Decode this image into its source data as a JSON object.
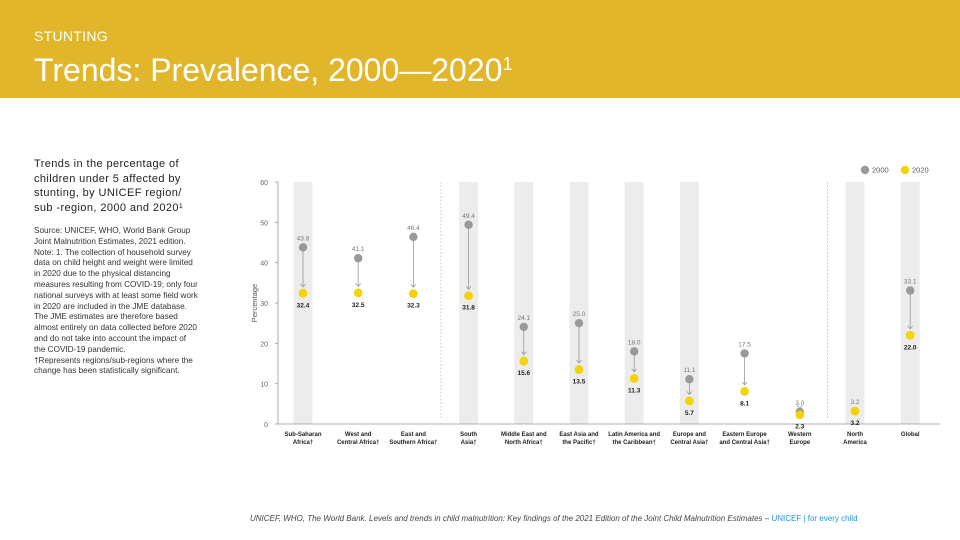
{
  "header": {
    "kicker": "STUNTING",
    "title": "Trends: Prevalence, 2000—2020",
    "title_sup": "1"
  },
  "intro": "Trends in the percentage of children under 5 affected by stunting, by UNICEF region/ sub -region, 2000 and 2020¹",
  "source": {
    "text": "Source: UNICEF, WHO, World Bank Group Joint Malnutrition Estimates, 2021 edition. Note: 1. The collection of household survey data on child height and weight were limited in 2020 due to the physical distancing measures resulting from COVID-19; only four national surveys with at least some field work in 2020 are included in the JME database. The JME estimates are therefore based almost entirely on data collected before 2020 and do not take into account the impact of the COVID-19 pandemic.",
    "note": "†Represents regions/sub-regions where the change has been statistically significant."
  },
  "footer": {
    "citation": "UNICEF, WHO, The World Bank. Levels and trends in child malnutrition: Key findings of the 2021 Edition of the Joint Child Malnutrition Estimates – ",
    "brand": "UNICEF | for every child"
  },
  "colors": {
    "header": "#e2b62b",
    "year2000": "#999999",
    "year2020": "#f5d20a",
    "band": "#ececec",
    "axis": "#999999"
  },
  "chart_data": {
    "type": "dot-plot",
    "ylabel": "Percentage",
    "ylim": [
      0,
      60
    ],
    "yticks": [
      0,
      10,
      20,
      30,
      40,
      50,
      60
    ],
    "legend": [
      {
        "name": "2000",
        "color": "#999999"
      },
      {
        "name": "2020",
        "color": "#f5d20a"
      }
    ],
    "categories": [
      {
        "l1": "Sub-Saharan",
        "l2": "Africa†",
        "v2000": 43.8,
        "v2020": 32.4,
        "band": true,
        "div": false
      },
      {
        "l1": "West and",
        "l2": "Central Africa†",
        "v2000": 41.1,
        "v2020": 32.5,
        "band": false,
        "div": false
      },
      {
        "l1": "East and",
        "l2": "Southern Africa†",
        "v2000": 46.4,
        "v2020": 32.3,
        "band": false,
        "div": true
      },
      {
        "l1": "South",
        "l2": "Asia†",
        "v2000": 49.4,
        "v2020": 31.8,
        "band": true,
        "div": false
      },
      {
        "l1": "Middle East and",
        "l2": "North Africa†",
        "v2000": 24.1,
        "v2020": 15.6,
        "band": true,
        "div": false
      },
      {
        "l1": "East Asia and",
        "l2": "the Pacific†",
        "v2000": 25.0,
        "v2020": 13.5,
        "band": true,
        "div": false
      },
      {
        "l1": "Latin America and",
        "l2": "the Caribbean†",
        "v2000": 18.0,
        "v2020": 11.3,
        "band": true,
        "div": false
      },
      {
        "l1": "Europe and",
        "l2": "Central Asia†",
        "v2000": 11.1,
        "v2020": 5.7,
        "band": true,
        "div": false
      },
      {
        "l1": "Eastern Europe",
        "l2": "and Central Asia†",
        "v2000": 17.5,
        "v2020": 8.1,
        "band": false,
        "div": false
      },
      {
        "l1": "Western",
        "l2": "Europe",
        "v2000": 3.0,
        "v2020": 2.3,
        "band": false,
        "div": true
      },
      {
        "l1": "North",
        "l2": "America",
        "v2000": 3.2,
        "v2020": 3.2,
        "band": true,
        "div": false
      },
      {
        "l1": "Global",
        "l2": "",
        "v2000": 33.1,
        "v2020": 22.0,
        "band": true,
        "div": false
      }
    ]
  }
}
